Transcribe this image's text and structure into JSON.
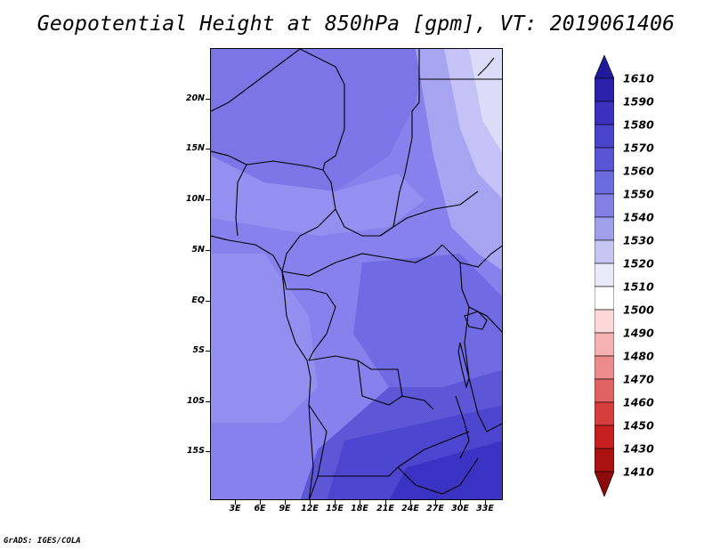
{
  "title": "Geopotential Height at 850hPa [gpm], VT: 2019061406",
  "footer": "GrADS: IGES/COLA",
  "map": {
    "y_labels": [
      "20N",
      "15N",
      "10N",
      "5N",
      "EQ",
      "5S",
      "10S",
      "15S"
    ],
    "x_labels": [
      "3E",
      "6E",
      "9E",
      "12E",
      "15E",
      "18E",
      "21E",
      "24E",
      "27E",
      "30E",
      "33E"
    ]
  },
  "colorbar": {
    "levels": [
      "1610",
      "1590",
      "1580",
      "1570",
      "1560",
      "1550",
      "1540",
      "1530",
      "1520",
      "1510",
      "1500",
      "1490",
      "1480",
      "1470",
      "1460",
      "1450",
      "1430",
      "1410"
    ],
    "colors": [
      "#1e1a9a",
      "#2a22ab",
      "#3a32be",
      "#4a44cc",
      "#5a55d6",
      "#6c6bde",
      "#8280e5",
      "#a09fec",
      "#c6c6f3",
      "#e9e9fa",
      "#ffffff",
      "#fcd8d8",
      "#f6b1b1",
      "#ec8b8b",
      "#e06262",
      "#d63e3e",
      "#c61f1f",
      "#aa1212",
      "#8c0a0a"
    ]
  },
  "colors": {
    "base_field": "#8a84ef",
    "dark_field": "#3f38c5",
    "light_field": "#dcdcf8",
    "border": "#000000"
  }
}
